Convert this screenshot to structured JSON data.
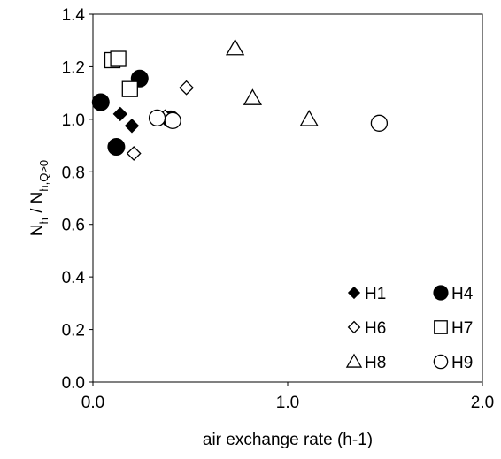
{
  "chart_data": {
    "type": "scatter",
    "title": "",
    "xlabel": "air exchange rate (h-1)",
    "ylabel": {
      "main": "N",
      "sub1": "h",
      "sep": " / N",
      "sub2": "h,Q>0"
    },
    "xlim": [
      0,
      2.0
    ],
    "ylim": [
      0,
      1.4
    ],
    "xticks": [
      "0.0",
      "1.0",
      "2.0"
    ],
    "yticks": [
      "0.0",
      "0.2",
      "0.4",
      "0.6",
      "0.8",
      "1.0",
      "1.2",
      "1.4"
    ],
    "grid": false,
    "legend_position": "bottom-right",
    "series": [
      {
        "name": "H1",
        "marker": "diamond-filled",
        "points": [
          [
            0.14,
            1.02
          ],
          [
            0.2,
            0.975
          ],
          [
            0.41,
            1.0
          ]
        ]
      },
      {
        "name": "H4",
        "marker": "circle-filled",
        "points": [
          [
            0.04,
            1.065
          ],
          [
            0.12,
            0.895
          ],
          [
            0.24,
            1.155
          ],
          [
            0.4,
            1.0
          ]
        ]
      },
      {
        "name": "H6",
        "marker": "diamond-open",
        "points": [
          [
            0.21,
            0.87
          ],
          [
            0.37,
            1.01
          ],
          [
            0.48,
            1.12
          ]
        ]
      },
      {
        "name": "H7",
        "marker": "square-open",
        "points": [
          [
            0.1,
            1.225
          ],
          [
            0.13,
            1.23
          ],
          [
            0.19,
            1.115
          ]
        ]
      },
      {
        "name": "H8",
        "marker": "triangle-open",
        "points": [
          [
            0.73,
            1.27
          ],
          [
            0.82,
            1.08
          ],
          [
            1.11,
            1.0
          ]
        ]
      },
      {
        "name": "H9",
        "marker": "circle-open",
        "points": [
          [
            0.33,
            1.005
          ],
          [
            0.41,
            0.995
          ],
          [
            1.47,
            0.985
          ]
        ]
      }
    ]
  }
}
